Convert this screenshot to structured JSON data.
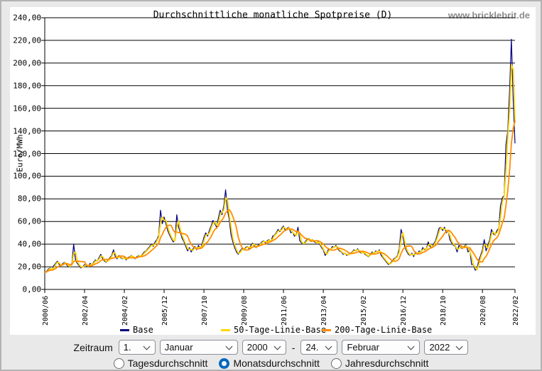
{
  "page": {
    "background": "#e9e9e9",
    "border_color": "#b3b3b3"
  },
  "header": {
    "title": "Durchschnittliche monatliche Spotpreise (D)",
    "watermark": "www.bricklebrit.de"
  },
  "chart_data": {
    "type": "line",
    "title": "Durchschnittliche monatliche Spotpreise (D)",
    "xlabel": "",
    "ylabel": "Euro/MWh",
    "ylim": [
      0,
      240
    ],
    "grid": "horizontal-black-lines",
    "legend_position": "bottom",
    "x_start": "2000/06",
    "x_end": "2022/02",
    "months_total": 261,
    "y_ticks": [
      {
        "value": 0,
        "label": "0,00"
      },
      {
        "value": 20,
        "label": "20,00"
      },
      {
        "value": 40,
        "label": "40,00"
      },
      {
        "value": 60,
        "label": "60,00"
      },
      {
        "value": 80,
        "label": "80,00"
      },
      {
        "value": 100,
        "label": "100,00"
      },
      {
        "value": 120,
        "label": "120,00"
      },
      {
        "value": 140,
        "label": "140,00"
      },
      {
        "value": 160,
        "label": "160,00"
      },
      {
        "value": 180,
        "label": "180,00"
      },
      {
        "value": 200,
        "label": "200,00"
      },
      {
        "value": 220,
        "label": "220,00"
      },
      {
        "value": 240,
        "label": "240,00"
      }
    ],
    "x_ticks": [
      {
        "month": 0,
        "label": "2000/06"
      },
      {
        "month": 22,
        "label": "2002/04"
      },
      {
        "month": 44,
        "label": "2004/02"
      },
      {
        "month": 66,
        "label": "2005/12"
      },
      {
        "month": 88,
        "label": "2007/10"
      },
      {
        "month": 110,
        "label": "2009/08"
      },
      {
        "month": 132,
        "label": "2011/06"
      },
      {
        "month": 154,
        "label": "2013/04"
      },
      {
        "month": 176,
        "label": "2015/02"
      },
      {
        "month": 198,
        "label": "2016/12"
      },
      {
        "month": 220,
        "label": "2018/10"
      },
      {
        "month": 242,
        "label": "2020/08"
      },
      {
        "month": 260,
        "label": "2022/02"
      }
    ],
    "series": [
      {
        "name": "Base",
        "color": "#000080",
        "stroke_width": 1.2,
        "kind": "raw",
        "values": [
          15,
          16,
          18,
          19,
          17,
          21,
          23,
          25,
          22,
          21,
          23,
          24,
          22,
          20,
          21,
          23,
          40,
          26,
          23,
          21,
          19,
          20,
          22,
          21,
          20,
          23,
          22,
          24,
          26,
          25,
          28,
          31,
          27,
          25,
          24,
          26,
          28,
          30,
          35,
          29,
          27,
          30,
          28,
          27,
          28,
          26,
          28,
          29,
          30,
          28,
          27,
          29,
          30,
          29,
          31,
          33,
          34,
          36,
          38,
          40,
          38,
          42,
          44,
          48,
          70,
          58,
          64,
          58,
          52,
          48,
          45,
          42,
          44,
          66,
          55,
          50,
          45,
          42,
          38,
          34,
          37,
          33,
          36,
          38,
          35,
          39,
          36,
          40,
          46,
          50,
          47,
          52,
          56,
          61,
          58,
          55,
          63,
          70,
          66,
          74,
          88,
          70,
          62,
          48,
          42,
          37,
          33,
          31,
          34,
          36,
          35,
          37,
          38,
          36,
          39,
          41,
          38,
          37,
          39,
          40,
          42,
          43,
          41,
          43,
          44,
          42,
          47,
          48,
          50,
          53,
          51,
          54,
          56,
          52,
          54,
          55,
          50,
          51,
          47,
          48,
          55,
          43,
          41,
          40,
          42,
          44,
          45,
          43,
          44,
          42,
          41,
          42,
          40,
          37,
          35,
          30,
          32,
          36,
          35,
          38,
          37,
          39,
          36,
          34,
          33,
          31,
          32,
          30,
          31,
          32,
          33,
          35,
          34,
          36,
          33,
          32,
          33,
          31,
          30,
          29,
          31,
          33,
          32,
          34,
          33,
          35,
          30,
          28,
          26,
          24,
          22,
          23,
          25,
          27,
          28,
          30,
          36,
          53,
          47,
          38,
          34,
          31,
          30,
          32,
          29,
          33,
          31,
          34,
          33,
          37,
          35,
          36,
          42,
          38,
          37,
          40,
          43,
          48,
          54,
          55,
          52,
          55,
          50,
          52,
          44,
          41,
          39,
          38,
          33,
          39,
          37,
          36,
          38,
          40,
          33,
          35,
          22,
          22,
          17,
          18,
          26,
          30,
          35,
          44,
          34,
          39,
          44,
          53,
          49,
          48,
          52,
          54,
          74,
          81,
          83,
          128,
          140,
          176,
          221,
          167,
          129
        ]
      },
      {
        "name": "50-Tage-Linie-Base",
        "color": "#ffd700",
        "stroke_width": 1.8,
        "kind": "moving-average-of-Base",
        "window_months": 2
      },
      {
        "name": "200-Tage-Linie-Base",
        "color": "#ff8c00",
        "stroke_width": 1.8,
        "kind": "moving-average-of-Base",
        "window_months": 7
      }
    ]
  },
  "legend": {
    "items": [
      {
        "label": "Base",
        "color": "#000080"
      },
      {
        "label": "50-Tage-Linie-Base",
        "color": "#ffd700"
      },
      {
        "label": "200-Tage-Linie-Base",
        "color": "#ff8c00"
      }
    ]
  },
  "form": {
    "zeitraum_label": "Zeitraum",
    "separator": "-",
    "from": {
      "day": "1.",
      "month": "Januar",
      "year": "2000"
    },
    "to": {
      "day": "24.",
      "month": "Februar",
      "year": "2022"
    },
    "radios": [
      {
        "label": "Tagesdurchschnitt",
        "checked": false
      },
      {
        "label": "Monatsdurchschnitt",
        "checked": true
      },
      {
        "label": "Jahresdurchschnitt",
        "checked": false
      }
    ]
  }
}
